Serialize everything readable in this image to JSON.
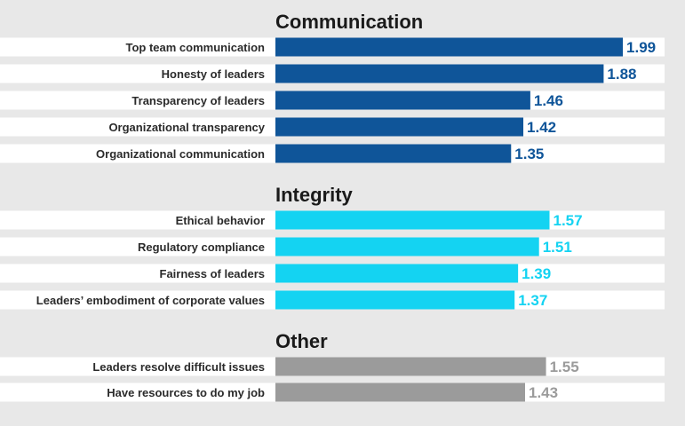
{
  "chart_data": {
    "type": "bar",
    "orientation": "horizontal",
    "groups": [
      {
        "title": "Communication",
        "color": "#0f5599",
        "value_color": "#0f5599",
        "items": [
          {
            "label": "Top team communication",
            "value": 1.99
          },
          {
            "label": "Honesty of leaders",
            "value": 1.88
          },
          {
            "label": "Transparency of leaders",
            "value": 1.46
          },
          {
            "label": "Organizational transparency",
            "value": 1.42
          },
          {
            "label": "Organizational communication",
            "value": 1.35
          }
        ]
      },
      {
        "title": "Integrity",
        "color": "#14d3f2",
        "value_color": "#14d3f2",
        "items": [
          {
            "label": "Ethical behavior",
            "value": 1.57
          },
          {
            "label": "Regulatory compliance",
            "value": 1.51
          },
          {
            "label": "Fairness of leaders",
            "value": 1.39
          },
          {
            "label": "Leaders’ embodiment of corporate values",
            "value": 1.37
          }
        ]
      },
      {
        "title": "Other",
        "color": "#9b9b9b",
        "value_color": "#9b9b9b",
        "items": [
          {
            "label": "Leaders resolve difficult issues",
            "value": 1.55
          },
          {
            "label": "Have resources to do my job",
            "value": 1.43
          }
        ]
      }
    ],
    "xlim": [
      0,
      2.1
    ],
    "grid": false,
    "legend": "none",
    "background": "#e8e8e8",
    "row_background": "#ffffff"
  }
}
